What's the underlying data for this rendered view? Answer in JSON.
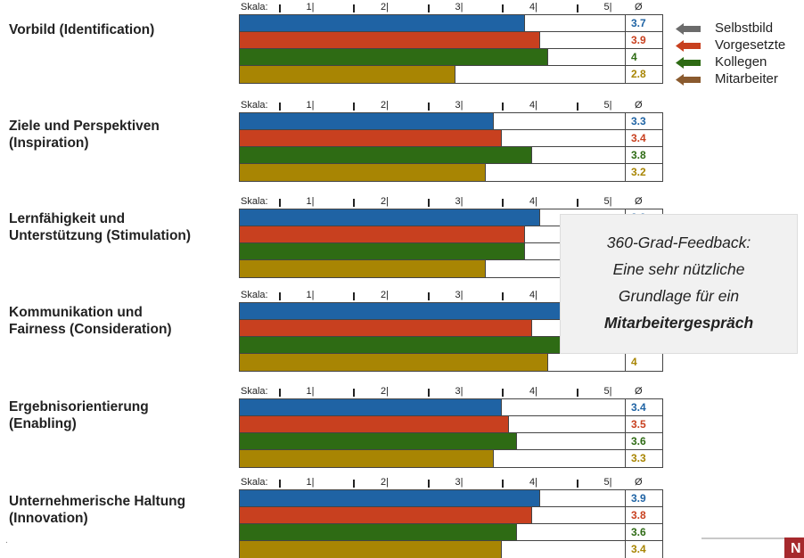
{
  "chart_data": {
    "type": "bar",
    "orientation": "horizontal",
    "scale_label": "Skala:",
    "scale_ticks": [
      "1|",
      "2|",
      "3|",
      "4|",
      "5|"
    ],
    "avg_label": "Ø",
    "xlim": [
      0,
      5
    ],
    "series_names": [
      "Selbstbild",
      "Vorgesetzte",
      "Kollegen",
      "Mitarbeiter"
    ],
    "categories": [
      {
        "label_lines": [
          "Vorbild (Identification)"
        ],
        "values": [
          3.7,
          3.9,
          4.0,
          2.8
        ],
        "value_labels": [
          "3.7",
          "3.9",
          "4",
          "2.8"
        ]
      },
      {
        "label_lines": [
          "Ziele und Perspektiven",
          "(Inspiration)"
        ],
        "values": [
          3.3,
          3.4,
          3.8,
          3.2
        ],
        "value_labels": [
          "3.3",
          "3.4",
          "3.8",
          "3.2"
        ]
      },
      {
        "label_lines": [
          "Lernfähigkeit und",
          "Unterstützung (Stimulation)"
        ],
        "values": [
          3.9,
          3.7,
          3.7,
          3.2
        ],
        "value_labels": [
          "3.9",
          "",
          "",
          ""
        ]
      },
      {
        "label_lines": [
          "Kommunikation und",
          "Fairness (Consideration)"
        ],
        "values": [
          4.3,
          3.8,
          4.3,
          4.0
        ],
        "value_labels": [
          "",
          "",
          "",
          "4"
        ]
      },
      {
        "label_lines": [
          "Ergebnisorientierung",
          "(Enabling)"
        ],
        "values": [
          3.4,
          3.5,
          3.6,
          3.3
        ],
        "value_labels": [
          "3.4",
          "3.5",
          "3.6",
          "3.3"
        ]
      },
      {
        "label_lines": [
          "Unternehmerische Haltung",
          "(Innovation)"
        ],
        "values": [
          3.9,
          3.8,
          3.6,
          3.4
        ],
        "value_labels": [
          "3.9",
          "3.8",
          "3.6",
          "3.4"
        ]
      }
    ]
  },
  "colors": {
    "Selbstbild": "#1f63a4",
    "Vorgesetzte": "#c8401f",
    "Kollegen": "#2e6b14",
    "Mitarbeiter": "#a88503",
    "legend_arrows": [
      "#6b6b6b",
      "#c8401f",
      "#2e6b14",
      "#8a5a2e"
    ]
  },
  "legend": {
    "items": [
      "Selbstbild",
      "Vorgesetzte",
      "Kollegen",
      "Mitarbeiter"
    ]
  },
  "callout": {
    "line1": "360-Grad-Feedback:",
    "line2": "Eine sehr nützliche",
    "line3": "Grundlage für ein",
    "line4": "Mitarbeitergespräch"
  },
  "corner_badge": "N",
  "edge_mark": "."
}
